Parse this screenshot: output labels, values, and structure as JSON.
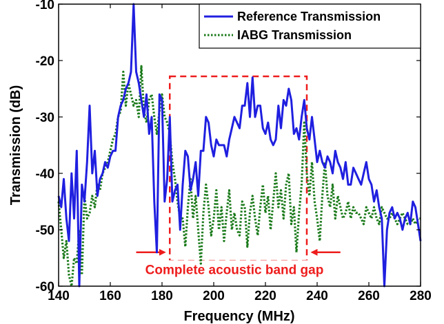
{
  "chart_data": {
    "type": "line",
    "title": "",
    "xlabel": "Frequency (MHz)",
    "ylabel": "Transmission (dB)",
    "xlim": [
      140,
      280
    ],
    "ylim": [
      -60,
      -10
    ],
    "xticks": [
      140,
      160,
      180,
      200,
      220,
      240,
      260,
      280
    ],
    "yticks": [
      -60,
      -50,
      -40,
      -30,
      -20,
      -10
    ],
    "xtick_labels": [
      "140",
      "160",
      "180",
      "200",
      "220",
      "240",
      "260",
      "280"
    ],
    "ytick_labels": [
      "-60",
      "-50",
      "-40",
      "-30",
      "-20",
      "-10"
    ],
    "grid": false,
    "legend_position": "top-right",
    "series": [
      {
        "name": "Reference Transmission",
        "color": "#1f1fe0",
        "style": "solid",
        "x": [
          140,
          141,
          142,
          143,
          144,
          145,
          146,
          147,
          148,
          149,
          150,
          151,
          152,
          153,
          154,
          155,
          156,
          157,
          158,
          159,
          160,
          161,
          162,
          163,
          164,
          165,
          166,
          167,
          168,
          169,
          170,
          171,
          172,
          173,
          174,
          175,
          176,
          177,
          178,
          179,
          180,
          181,
          182,
          183,
          184,
          185,
          186,
          187,
          188,
          189,
          190,
          191,
          192,
          193,
          194,
          195,
          196,
          197,
          198,
          199,
          200,
          201,
          202,
          203,
          204,
          205,
          206,
          207,
          208,
          209,
          210,
          211,
          212,
          213,
          214,
          215,
          216,
          217,
          218,
          219,
          220,
          221,
          222,
          223,
          224,
          225,
          226,
          227,
          228,
          229,
          230,
          231,
          232,
          233,
          234,
          235,
          236,
          237,
          238,
          239,
          240,
          241,
          242,
          243,
          244,
          245,
          246,
          247,
          248,
          249,
          250,
          251,
          252,
          253,
          254,
          255,
          256,
          257,
          258,
          259,
          260,
          261,
          262,
          263,
          264,
          265,
          266,
          267,
          268,
          269,
          270,
          271,
          272,
          273,
          274,
          275,
          276,
          277,
          278,
          279,
          280
        ],
        "values": [
          -44,
          -46,
          -41,
          -48,
          -52,
          -40,
          -48,
          -36,
          -60,
          -42,
          -45,
          -38,
          -28,
          -40,
          -36,
          -44,
          -41,
          -40,
          -38,
          -39,
          -37,
          -36,
          -36,
          -30,
          -28,
          -27,
          -25,
          -24,
          -22,
          -10,
          -22,
          -24,
          -27,
          -30,
          -26,
          -33,
          -30,
          -45,
          -54,
          -26,
          -27,
          -45,
          -41,
          -30,
          -45,
          -43,
          -42,
          -50,
          -42,
          -36,
          -37,
          -43,
          -41,
          -38,
          -44,
          -36,
          -36,
          -30,
          -31,
          -35,
          -37,
          -34,
          -35,
          -35,
          -35,
          -37,
          -34,
          -32,
          -30,
          -31,
          -32,
          -28,
          -28,
          -24,
          -30,
          -23,
          -30,
          -28,
          -28,
          -32,
          -33,
          -31,
          -34,
          -35,
          -34,
          -28,
          -32,
          -27,
          -28,
          -25,
          -27,
          -33,
          -32,
          -34,
          -30,
          -27,
          -32,
          -34,
          -30,
          -34,
          -38,
          -36,
          -38,
          -39,
          -37,
          -38,
          -40,
          -36,
          -38,
          -39,
          -41,
          -38,
          -42,
          -42,
          -39,
          -40,
          -41,
          -42,
          -40,
          -38,
          -41,
          -42,
          -45,
          -43,
          -46,
          -48,
          -60,
          -50,
          -47,
          -46,
          -48,
          -47,
          -48,
          -50,
          -48,
          -47,
          -49,
          -45,
          -46,
          -49,
          -52
        ]
      },
      {
        "name": "IABG Transmission",
        "color": "#1a7a1a",
        "style": "dotted",
        "x": [
          140,
          141,
          142,
          143,
          144,
          145,
          146,
          147,
          148,
          149,
          150,
          151,
          152,
          153,
          154,
          155,
          156,
          157,
          158,
          159,
          160,
          161,
          162,
          163,
          164,
          165,
          166,
          167,
          168,
          169,
          170,
          171,
          172,
          173,
          174,
          175,
          176,
          177,
          178,
          179,
          180,
          181,
          182,
          183,
          184,
          185,
          186,
          187,
          188,
          189,
          190,
          191,
          192,
          193,
          194,
          195,
          196,
          197,
          198,
          199,
          200,
          201,
          202,
          203,
          204,
          205,
          206,
          207,
          208,
          209,
          210,
          211,
          212,
          213,
          214,
          215,
          216,
          217,
          218,
          219,
          220,
          221,
          222,
          223,
          224,
          225,
          226,
          227,
          228,
          229,
          230,
          231,
          232,
          233,
          234,
          235,
          236,
          237,
          238,
          239,
          240,
          241,
          242,
          243,
          244,
          245,
          246,
          247,
          248,
          249,
          250,
          251,
          252,
          253,
          254,
          255,
          256,
          257,
          258,
          259,
          260,
          261,
          262,
          263,
          264,
          265,
          266,
          267,
          268,
          269,
          270,
          271,
          272,
          273,
          274,
          275,
          276,
          277,
          278,
          279,
          280
        ],
        "values": [
          -45,
          -50,
          -55,
          -52,
          -58,
          -60,
          -55,
          -56,
          -50,
          -58,
          -44,
          -48,
          -47,
          -44,
          -46,
          -42,
          -43,
          -40,
          -39,
          -38,
          -36,
          -34,
          -33,
          -30,
          -29,
          -22,
          -28,
          -24,
          -26,
          -28,
          -27,
          -30,
          -21,
          -29,
          -31,
          -27,
          -26,
          -30,
          -33,
          -29,
          -26,
          -30,
          -31,
          -33,
          -38,
          -41,
          -45,
          -48,
          -48,
          -53,
          -46,
          -41,
          -48,
          -44,
          -50,
          -56,
          -47,
          -42,
          -46,
          -51,
          -48,
          -43,
          -50,
          -46,
          -52,
          -47,
          -43,
          -50,
          -47,
          -50,
          -51,
          -45,
          -46,
          -53,
          -47,
          -44,
          -48,
          -51,
          -46,
          -42,
          -47,
          -44,
          -50,
          -45,
          -40,
          -46,
          -43,
          -48,
          -42,
          -40,
          -49,
          -46,
          -54,
          -47,
          -42,
          -31,
          -40,
          -44,
          -38,
          -45,
          -48,
          -52,
          -44,
          -38,
          -44,
          -46,
          -42,
          -48,
          -44,
          -46,
          -48,
          -47,
          -45,
          -48,
          -46,
          -47,
          -47,
          -48,
          -49,
          -46,
          -47,
          -48,
          -46,
          -48,
          -49,
          -46,
          -47,
          -48,
          -48,
          -47,
          -48,
          -49,
          -48,
          -47,
          -48,
          -49,
          -49,
          -48,
          -49,
          -48,
          -48
        ]
      }
    ],
    "annotations": [
      {
        "type": "box",
        "x0": 183,
        "x1": 236,
        "y0": -55.5,
        "y1": -22.8,
        "color": "#ee1c1c"
      },
      {
        "type": "text",
        "text": "Complete acoustic band gap",
        "x": 208,
        "y": -57,
        "color": "#ee1c1c"
      },
      {
        "type": "arrow",
        "from": [
          170,
          -54
        ],
        "to": [
          181,
          -54
        ],
        "color": "#ee1c1c"
      },
      {
        "type": "arrow",
        "from": [
          249,
          -54
        ],
        "to": [
          238,
          -54
        ],
        "color": "#ee1c1c"
      }
    ]
  }
}
